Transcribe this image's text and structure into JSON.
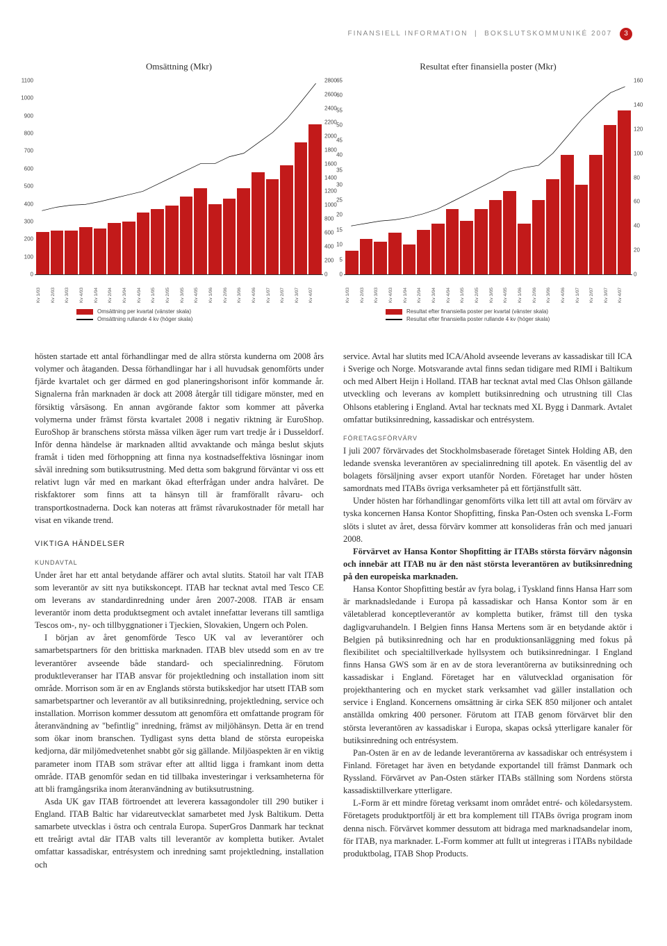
{
  "header": {
    "left": "FINANSIELL INFORMATION",
    "right": "BOKSLUTSKOMMUNIKÉ 2007",
    "page": "3"
  },
  "chart1": {
    "title": "Omsättning (Mkr)",
    "type": "bar+line",
    "categories": [
      "Kv 1/03",
      "Kv 2/03",
      "Kv 3/03",
      "Kv 4/03",
      "Kv 1/04",
      "Kv 2/04",
      "Kv 3/04",
      "Kv 4/04",
      "Kv 1/05",
      "Kv 2/05",
      "Kv 3/05",
      "Kv 4/05",
      "Kv 1/06",
      "Kv 2/06",
      "Kv 3/06",
      "Kv 4/06",
      "Kv 1/07",
      "Kv 2/07",
      "Kv 3/07",
      "Kv 4/07"
    ],
    "bar_values": [
      240,
      250,
      250,
      270,
      260,
      290,
      300,
      350,
      370,
      390,
      440,
      490,
      400,
      430,
      490,
      580,
      540,
      620,
      750,
      850
    ],
    "bar_color": "#c21a1a",
    "line_values": [
      920,
      970,
      1000,
      1010,
      1050,
      1100,
      1150,
      1200,
      1300,
      1400,
      1500,
      1600,
      1600,
      1700,
      1750,
      1900,
      2050,
      2250,
      2500,
      2760
    ],
    "line_color": "#000000",
    "left_ylim": [
      0,
      1100
    ],
    "left_ytick_step": 100,
    "right_ylim": [
      0,
      2800
    ],
    "right_ytick_step": 200,
    "legend_bar": "Omsättning per kvartal (vänster skala)",
    "legend_line": "Omsättning rullande 4 kv (höger skala)",
    "label_fontsize": 8
  },
  "chart2": {
    "title": "Resultat efter finansiella poster (Mkr)",
    "type": "bar+line",
    "categories": [
      "Kv 1/03",
      "Kv 2/03",
      "Kv 3/03",
      "Kv 4/03",
      "Kv 1/04",
      "Kv 2/04",
      "Kv 3/04",
      "Kv 4/04",
      "Kv 1/05",
      "Kv 2/05",
      "Kv 3/05",
      "Kv 4/05",
      "Kv 1/06",
      "Kv 2/06",
      "Kv 3/06",
      "Kv 4/06",
      "Kv 1/07",
      "Kv 2/07",
      "Kv 3/07",
      "Kv 4/07"
    ],
    "bar_values": [
      8,
      12,
      11,
      14,
      10,
      15,
      17,
      22,
      18,
      22,
      25,
      28,
      17,
      25,
      32,
      40,
      30,
      40,
      50,
      55
    ],
    "bar_color": "#c21a1a",
    "line_values": [
      40,
      42,
      44,
      45,
      47,
      50,
      54,
      60,
      66,
      72,
      78,
      85,
      88,
      90,
      100,
      114,
      128,
      140,
      150,
      155
    ],
    "line_color": "#000000",
    "left_ylim": [
      0,
      65
    ],
    "left_ytick_step": 5,
    "right_ylim": [
      0,
      160
    ],
    "right_ytick_step": 20,
    "legend_bar": "Resultat efter finansiella poster per kvartal (vänster skala)",
    "legend_line": "Resultat efter finansiella poster rullande 4 kv (höger skala)",
    "label_fontsize": 8
  },
  "body": {
    "p1": "hösten startade ett antal förhandlingar med de allra största kunderna om 2008 års volymer och åtaganden. Dessa förhandlingar har i all huvudsak genomförts under fjärde kvartalet och ger därmed en god planeringshorisont inför kommande år. Signalerna från marknaden är dock att 2008 återgår till tidigare mönster, med en försiktig vårsäsong. En annan avgörande faktor som kommer att påverka volymerna under främst första kvartalet 2008 i negativ riktning är EuroShop. EuroShop är branschens största mässa vilken äger rum vart tredje år i Dusseldorf. Inför denna händelse är marknaden alltid avvaktande och många beslut skjuts framåt i tiden med förhoppning att finna nya kostnadseffektiva lösningar inom såväl inredning som butiksutrustning. Med detta som bakgrund förväntar vi oss ett relativt lugn vår med en markant ökad efterfrågan under andra halvåret. De riskfaktorer som finns att ta hänsyn till är framförallt råvaru- och transportkostnaderna. Dock kan noteras att främst råvarukostnader för metall har visat en vikande trend.",
    "h_viktiga": "VIKTIGA HÄNDELSER",
    "h_kundavtal": "KUNDAVTAL",
    "p2": "Under året har ett antal betydande affärer och avtal slutits. Statoil har valt ITAB som leverantör av sitt nya butikskoncept. ITAB har tecknat avtal med Tesco CE om leverans av standardinredning under åren 2007-2008. ITAB är ensam leverantör inom detta produktsegment och avtalet innefattar leverans till samtliga Tescos om-, ny- och tillbyggnationer i Tjeckien, Slovakien, Ungern och Polen.",
    "p3": "I början av året genomförde Tesco UK val av leverantörer och samarbetspartners för den brittiska marknaden. ITAB blev utsedd som en av tre leverantörer avseende både standard- och specialinredning. Förutom produktleveranser har ITAB ansvar för projektledning och installation inom sitt område. Morrison som är en av Englands största butikskedjor har utsett ITAB som samarbetspartner och leverantör av all butiksinredning, projektledning, service och installation. Morrison kommer dessutom att genomföra ett omfattande program för återanvändning av \"befintlig\" inredning, främst av miljöhänsyn. Detta är en trend som ökar inom branschen. Tydligast syns detta bland de största europeiska kedjorna, där miljömedvetenhet snabbt gör sig gällande. Miljöaspekten är en viktig parameter inom ITAB som strävar efter att alltid ligga i framkant inom detta område. ITAB genomför sedan en tid tillbaka investeringar i verksamheterna för att bli framgångsrika inom återanvändning av butiksutrustning.",
    "p4": "Asda UK gav ITAB förtroendet att leverera kassagondoler till 290 butiker i England. ITAB Baltic har vidareutvecklat samarbetet med Jysk Baltikum. Detta samarbete utvecklas i östra och centrala Europa. SuperGros Danmark har tecknat ett treårigt avtal där ITAB valts till leverantör av kompletta butiker. Avtalet omfattar kassadiskar, entrésystem och inredning samt projektledning, installation och",
    "p5": "service. Avtal har slutits med ICA/Ahold avseende leverans av kassadiskar till ICA i Sverige och Norge. Motsvarande avtal finns sedan tidigare med RIMI i Baltikum och med Albert Heijn i Holland. ITAB har tecknat avtal med Clas Ohlson gällande utveckling och leverans av komplett butiksinredning och utrustning till Clas Ohlsons etablering i England. Avtal har tecknats med XL Bygg i Danmark. Avtalet omfattar butiksinredning, kassadiskar och entrésystem.",
    "h_foretag": "FÖRETAGSFÖRVÄRV",
    "p6": "I juli 2007 förvärvades det Stockholmsbaserade företaget Sintek Holding AB, den ledande svenska leverantören av specialinredning till apotek. En väsentlig del av bolagets försäljning avser export utanför Norden. Företaget har under hösten samordnats med ITABs övriga verksamheter på ett förtjänstfullt sätt.",
    "p7": "Under hösten har förhandlingar genomförts vilka lett till att avtal om förvärv av tyska koncernen Hansa Kontor Shopfitting, finska Pan-Osten och svenska L-Form slöts i slutet av året, dessa förvärv kommer att konsolideras från och med januari 2008.",
    "p8": "Förvärvet av Hansa Kontor Shopfitting är ITABs största förvärv någonsin och innebär att ITAB nu är den näst största leverantören av butiksinredning på den europeiska marknaden.",
    "p9": "Hansa Kontor Shopfitting består av fyra bolag, i Tyskland finns Hansa Harr som är marknadsledande i Europa på kassadiskar och Hansa Kontor som är en väletablerad konceptleverantör av kompletta butiker, främst till den tyska dagligvaruhandeln. I Belgien finns Hansa Mertens som är en betydande aktör i Belgien på butiksinredning och har en produktionsanläggning med fokus på flexibilitet och specialtillverkade hyllsystem och butiksinredningar. I England finns Hansa GWS som är en av de stora leverantörerna av butiksinredning och kassadiskar i England. Företaget har en välutvecklad organisation för projekthantering och en mycket stark verksamhet vad gäller installation och service i England. Koncernens omsättning är cirka SEK 850 miljoner och antalet anställda omkring 400 personer. Förutom att ITAB genom förvärvet blir den största leverantören av kassadiskar i Europa, skapas också ytterligare kanaler för butiksinredning och entrésystem.",
    "p10": "Pan-Osten är en av de ledande leverantörerna av kassadiskar och entrésystem i Finland. Företaget har även en betydande exportandel till främst Danmark och Ryssland. Förvärvet av Pan-Osten stärker ITABs ställning som Nordens största kassadisktillverkare ytterligare.",
    "p11": "L-Form är ett mindre företag verksamt inom området entré- och köledarsystem. Företagets produktportfölj är ett bra komplement till ITABs övriga program inom denna nisch. Förvärvet kommer dessutom att bidraga med marknadsandelar inom, för ITAB, nya marknader. L-Form kommer att fullt ut integreras i ITABs nybildade produktbolag, ITAB Shop Products."
  }
}
